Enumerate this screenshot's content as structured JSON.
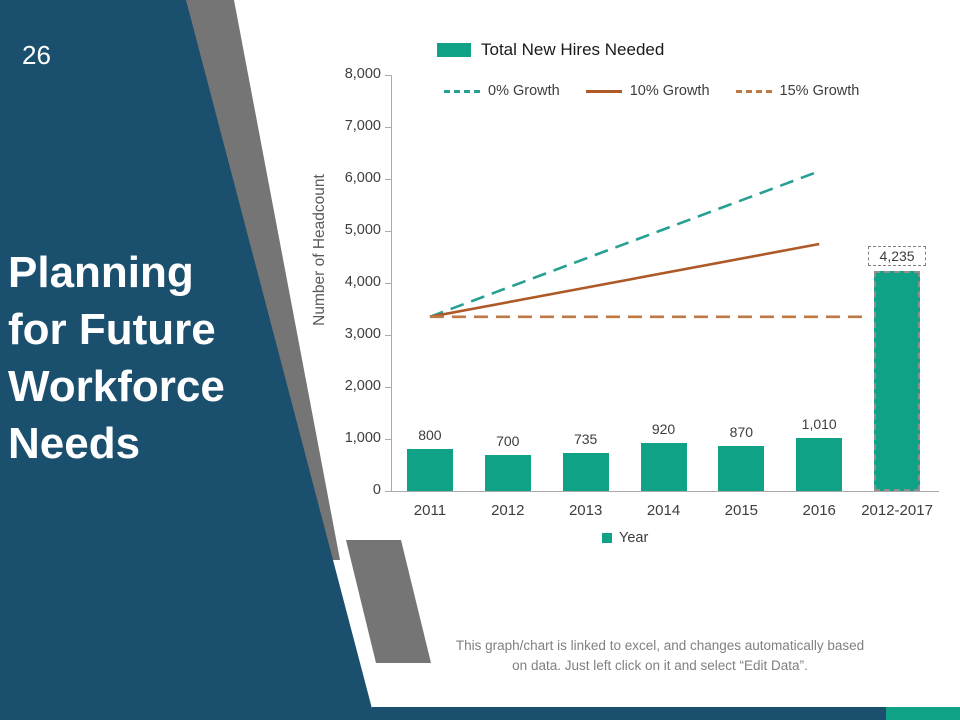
{
  "slide": {
    "page_number": "26",
    "title_lines": [
      "Planning",
      "for Future",
      "Workforce",
      "Needs"
    ],
    "footer_note_line1": "This graph/chart is linked to excel, and changes automatically based",
    "footer_note_line2": "on data. Just left click on it and select “Edit Data”."
  },
  "colors": {
    "navy": "#1A4F6E",
    "teal": "#10A287",
    "teal_line": "#27A093",
    "brown": "#AE5A28",
    "brown_light": "#BE7845",
    "gray_shape": "#757575",
    "axis_text": "#3D3D3D",
    "muted_text": "#808080"
  },
  "chart_data": {
    "type": "bar+line",
    "title": "Total New Hires Needed",
    "ylabel": "Number of Headcount",
    "x_legend_label": "Year",
    "ylim": [
      0,
      8000
    ],
    "grid": false,
    "legend_position": "top",
    "yticks": [
      "0",
      "1,000",
      "2,000",
      "3,000",
      "4,000",
      "5,000",
      "6,000",
      "7,000",
      "8,000"
    ],
    "categories": [
      "2011",
      "2012",
      "2013",
      "2014",
      "2015",
      "2016",
      "2012-2017"
    ],
    "bar_series": {
      "name": "Total New Hires Needed",
      "values": [
        800,
        700,
        735,
        920,
        870,
        1010,
        4235
      ],
      "labels": [
        "800",
        "700",
        "735",
        "920",
        "870",
        "1,010",
        "4,235"
      ],
      "selected_index": 6,
      "color_key": "teal"
    },
    "line_series": [
      {
        "name": "0% Growth",
        "values": [
          3350,
          6150
        ],
        "span": [
          0,
          5
        ],
        "dash": true,
        "color_key": "teal_line"
      },
      {
        "name": "10% Growth",
        "values": [
          3350,
          4750
        ],
        "span": [
          0,
          5
        ],
        "dash": false,
        "color_key": "brown"
      },
      {
        "name": "15% Growth",
        "values": [
          3350,
          3350
        ],
        "span": [
          0,
          5.65
        ],
        "dash": true,
        "color_key": "brown_light"
      }
    ]
  }
}
